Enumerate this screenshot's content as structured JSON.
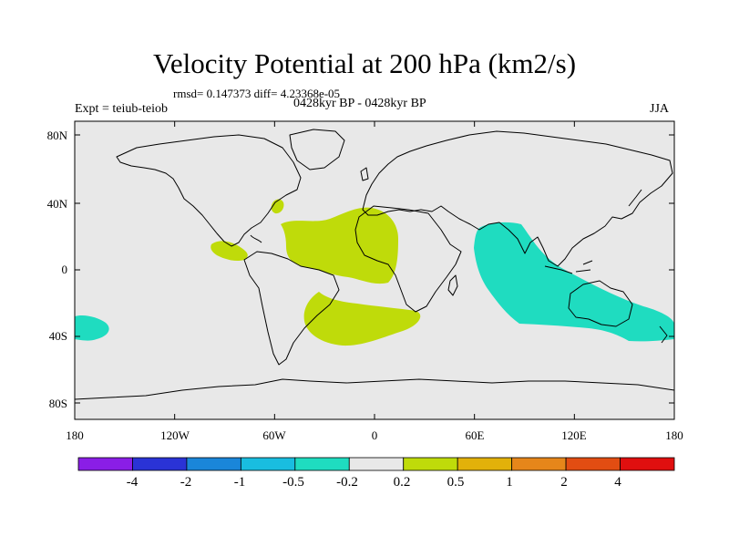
{
  "title": "Velocity Potential at 200 hPa (km2/s)",
  "stats": "rmsd= 0.147373 diff= 4.23368e-05",
  "left_label": "Expt = teiub-teiob",
  "center_label": "0428kyr BP - 0428kyr BP",
  "right_label": "JJA",
  "axes": {
    "lon_ticks": [
      "180",
      "120W",
      "60W",
      "0",
      "60E",
      "120E",
      "180"
    ],
    "lat_ticks": [
      "80N",
      "40N",
      "0",
      "40S",
      "80S"
    ]
  },
  "colorbar": {
    "labels": [
      "-4",
      "-2",
      "-1",
      "-0.5",
      "-0.2",
      "0.2",
      "0.5",
      "1",
      "2",
      "4"
    ],
    "colors": [
      "#8a1ee6",
      "#2a33d6",
      "#1a86d9",
      "#19bde0",
      "#1fdcc0",
      "#e8e8e8",
      "#bfdb0a",
      "#e2b10a",
      "#e6861a",
      "#e24d12",
      "#e00f0f"
    ]
  },
  "colors": {
    "ocean": "#e8e8e8",
    "positive_low": "#bfdb0a",
    "negative_low": "#1fdcc0",
    "coast": "#000000"
  }
}
